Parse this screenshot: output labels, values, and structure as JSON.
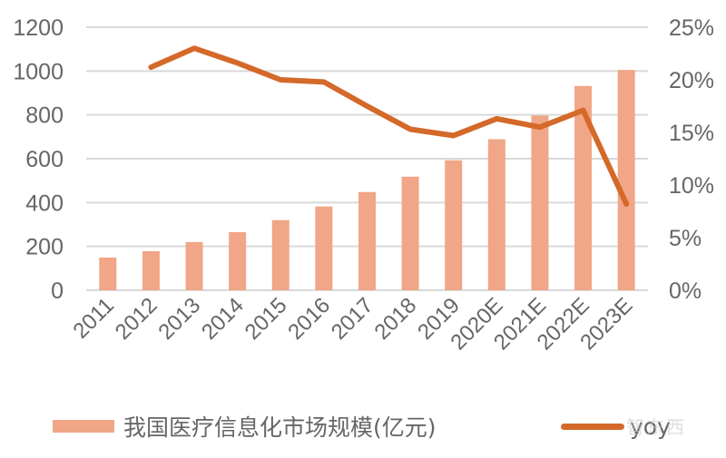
{
  "chart_data": {
    "type": "bar+line",
    "title": "",
    "categories": [
      "2011",
      "2012",
      "2013",
      "2014",
      "2015",
      "2016",
      "2017",
      "2018",
      "2019",
      "2020E",
      "2021E",
      "2022E",
      "2023E"
    ],
    "series": [
      {
        "name": "我国医疗信息化市场规模(亿元)",
        "type": "bar",
        "axis": "left",
        "color": "#F0A687",
        "values": [
          149,
          178,
          220,
          265,
          320,
          382,
          448,
          518,
          593,
          689,
          797,
          932,
          1005
        ]
      },
      {
        "name": "yoy",
        "type": "line",
        "axis": "right",
        "color": "#D4692A",
        "values": [
          null,
          21.2,
          23.0,
          21.6,
          20.0,
          19.8,
          17.5,
          15.3,
          14.7,
          16.3,
          15.5,
          17.1,
          8.2
        ]
      }
    ],
    "xlabel": "",
    "ylabel_left": "",
    "ylabel_right": "",
    "ylim_left": [
      0,
      1200
    ],
    "ylim_right": [
      0,
      25
    ],
    "yticks_left": [
      "0",
      "200",
      "400",
      "600",
      "800",
      "1000",
      "1200"
    ],
    "yticks_right": [
      "0%",
      "5%",
      "10%",
      "15%",
      "20%",
      "25%"
    ],
    "grid": true,
    "legend_position": "bottom"
  },
  "legend": {
    "bar_label": "我国医疗信息化市场规模(亿元)",
    "line_label": "yoy"
  },
  "watermark": "智东西"
}
